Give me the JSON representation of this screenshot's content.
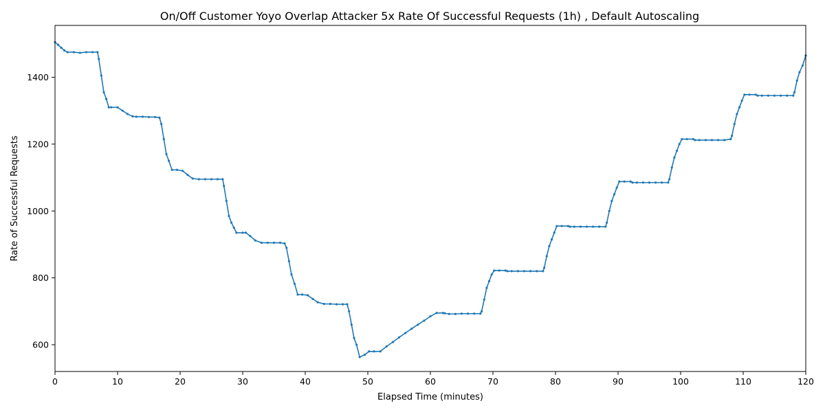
{
  "chart_data": {
    "type": "line",
    "title": "On/Off Customer Yoyo Overlap Attacker 5x Rate Of Successful Requests (1h) , Default Autoscaling",
    "xlabel": "Elapsed Time (minutes)",
    "ylabel": "Rate of Successful Requests",
    "xlim": [
      0,
      120
    ],
    "ylim": [
      520,
      1555
    ],
    "xticks": [
      0,
      10,
      20,
      30,
      40,
      50,
      60,
      70,
      80,
      90,
      100,
      110,
      120
    ],
    "yticks": [
      600,
      800,
      1000,
      1200,
      1400
    ],
    "grid": false,
    "series": [
      {
        "color": "#1f77b4",
        "marker": "dot",
        "x": [
          0,
          0.5,
          1,
          1.5,
          2,
          3,
          4,
          5,
          6,
          6.8,
          7,
          7.4,
          7.8,
          8.2,
          8.6,
          9,
          10,
          10.8,
          11.6,
          12.4,
          13,
          14,
          15,
          16,
          16.7,
          17,
          17.4,
          17.8,
          18.2,
          18.7,
          19.5,
          20.4,
          21.2,
          22,
          23,
          24,
          25,
          26,
          26.8,
          27,
          27.4,
          27.8,
          28.2,
          28.6,
          29,
          30,
          30.5,
          31.2,
          32,
          33,
          34,
          35,
          36,
          36.7,
          37,
          37.4,
          37.8,
          38.3,
          38.8,
          39.5,
          40.4,
          41.2,
          42,
          43,
          44,
          45,
          46,
          46.7,
          47,
          47.4,
          47.8,
          48.2,
          48.7,
          49.5,
          50.2,
          51,
          52,
          53,
          54,
          55,
          56,
          57,
          58,
          59,
          60,
          61,
          62,
          62.3,
          63,
          64,
          65,
          66,
          67,
          68,
          68.2,
          68.6,
          69,
          69.4,
          69.8,
          70.2,
          71,
          72,
          72.3,
          73,
          74,
          75,
          76,
          77,
          78,
          78.2,
          78.6,
          79,
          79.4,
          79.8,
          80.2,
          81,
          82,
          82.3,
          83,
          84,
          85,
          86,
          87,
          88,
          88.2,
          88.6,
          89,
          89.4,
          89.8,
          90.2,
          91,
          92,
          92.3,
          93,
          94,
          95,
          96,
          97,
          98,
          98.2,
          98.6,
          99,
          99.4,
          99.8,
          100.2,
          101,
          102,
          102.3,
          103,
          104,
          105,
          106,
          107,
          108,
          108.2,
          108.6,
          109,
          109.4,
          109.8,
          110.2,
          111,
          112,
          112.3,
          113,
          114,
          115,
          116,
          117,
          118,
          118.2,
          118.6,
          119,
          119.5,
          120
        ],
        "y": [
          1505,
          1497,
          1488,
          1480,
          1475,
          1475,
          1473,
          1475,
          1475,
          1475,
          1455,
          1405,
          1355,
          1335,
          1310,
          1310,
          1310,
          1300,
          1290,
          1283,
          1282,
          1282,
          1281,
          1281,
          1279,
          1260,
          1215,
          1170,
          1150,
          1123,
          1123,
          1120,
          1108,
          1097,
          1095,
          1095,
          1095,
          1095,
          1095,
          1075,
          1030,
          985,
          965,
          950,
          935,
          935,
          935,
          925,
          912,
          905,
          905,
          905,
          905,
          903,
          890,
          850,
          810,
          782,
          750,
          750,
          748,
          737,
          727,
          722,
          722,
          721,
          721,
          721,
          700,
          660,
          620,
          600,
          563,
          570,
          580,
          580,
          580,
          595,
          608,
          622,
          635,
          648,
          660,
          672,
          685,
          695,
          695,
          694,
          692,
          692,
          693,
          693,
          693,
          693,
          700,
          735,
          770,
          790,
          810,
          822,
          822,
          822,
          820,
          820,
          820,
          820,
          820,
          820,
          820,
          830,
          865,
          895,
          915,
          935,
          955,
          955,
          955,
          953,
          953,
          953,
          953,
          953,
          953,
          953,
          965,
          1000,
          1030,
          1050,
          1070,
          1088,
          1088,
          1088,
          1085,
          1085,
          1085,
          1085,
          1085,
          1085,
          1085,
          1095,
          1130,
          1160,
          1180,
          1200,
          1215,
          1215,
          1215,
          1212,
          1212,
          1212,
          1212,
          1212,
          1212,
          1215,
          1225,
          1260,
          1290,
          1310,
          1330,
          1348,
          1348,
          1348,
          1345,
          1345,
          1345,
          1345,
          1345,
          1345,
          1345,
          1355,
          1390,
          1415,
          1435,
          1465
        ]
      }
    ]
  }
}
